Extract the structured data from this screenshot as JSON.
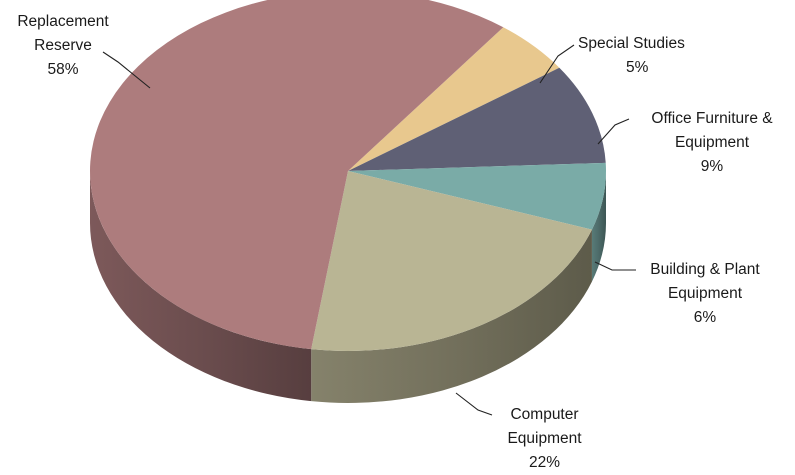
{
  "chart_data": {
    "type": "pie",
    "style": "3d",
    "slices": [
      {
        "lines": [
          "Special Studies",
          "5%"
        ],
        "value": 5,
        "color": "#e8c88e"
      },
      {
        "lines": [
          "Office Furniture &",
          "Equipment",
          "9%"
        ],
        "value": 9,
        "color": "#5f6075"
      },
      {
        "lines": [
          "Building & Plant",
          "Equipment",
          "6%"
        ],
        "value": 6,
        "color": "#7aaba7"
      },
      {
        "lines": [
          "Computer",
          "Equipment",
          "22%"
        ],
        "value": 22,
        "color": "#b9b594"
      },
      {
        "lines": [
          "Replacement",
          "Reserve",
          "58%"
        ],
        "value": 58,
        "color": "#ad7c7d"
      }
    ]
  }
}
